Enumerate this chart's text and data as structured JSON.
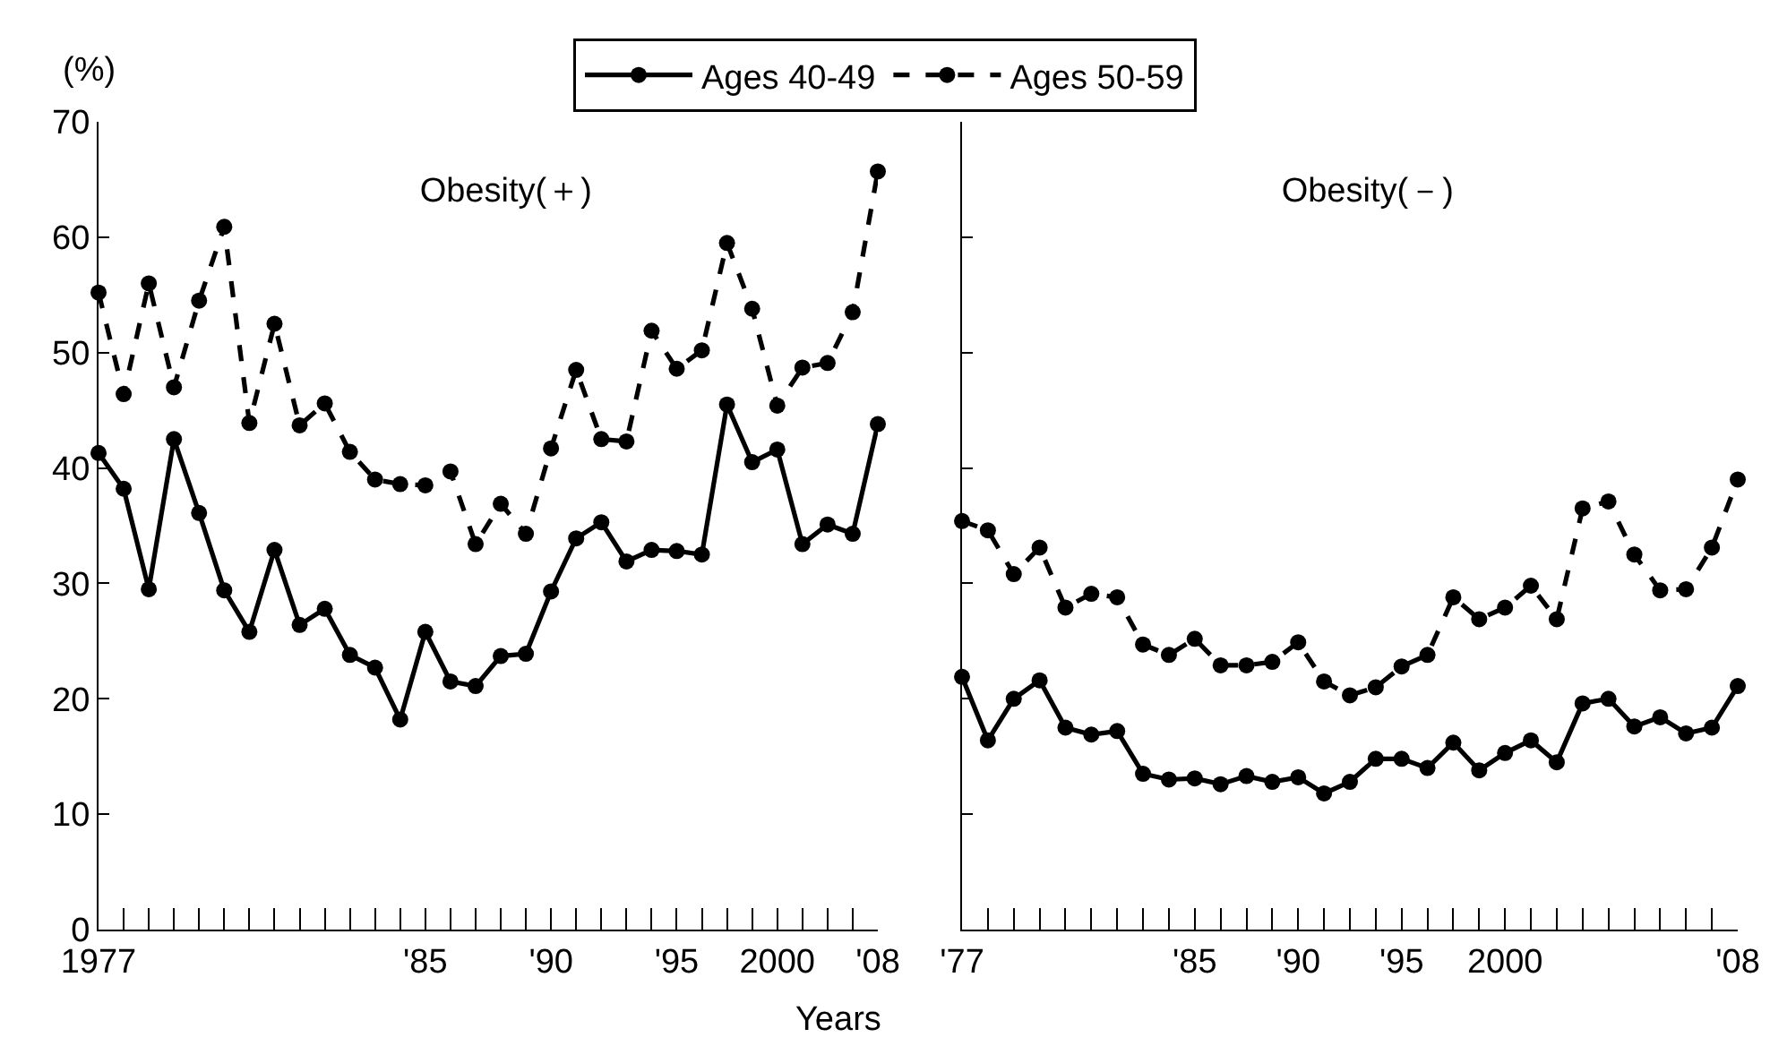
{
  "chart_data": [
    {
      "type": "line",
      "title": "Obesity(＋)",
      "ylabel": "(%)",
      "xlabel": "Years",
      "legend": "top",
      "marker": "circle",
      "categories": [
        "1977",
        null,
        null,
        null,
        null,
        null,
        null,
        null,
        null,
        null,
        null,
        null,
        null,
        "'85",
        null,
        null,
        null,
        null,
        "'90",
        null,
        null,
        null,
        null,
        "'95",
        null,
        null,
        null,
        "2000",
        null,
        null,
        null,
        "'08"
      ],
      "ylim": [
        0,
        70
      ],
      "yticks": [
        0,
        10,
        20,
        30,
        40,
        50,
        60,
        70
      ],
      "series": [
        {
          "name": "Ages 40-49",
          "color": "#000000",
          "line_style": "solid",
          "values": [
            41.3,
            38.2,
            29.5,
            42.5,
            36.1,
            29.4,
            25.8,
            32.9,
            26.4,
            27.8,
            23.8,
            22.7,
            18.2,
            25.8,
            21.5,
            21.1,
            23.7,
            23.9,
            29.3,
            33.9,
            35.3,
            31.9,
            32.9,
            32.8,
            32.5,
            45.5,
            40.5,
            41.6,
            33.4,
            35.1,
            34.3,
            43.8
          ]
        },
        {
          "name": "Ages 50-59",
          "color": "#000000",
          "line_style": "dashed",
          "values": [
            55.2,
            46.4,
            56.0,
            47.0,
            54.5,
            60.9,
            43.9,
            52.5,
            43.7,
            45.6,
            41.4,
            39.0,
            38.6,
            38.5,
            39.7,
            33.4,
            36.9,
            34.3,
            41.7,
            48.5,
            42.5,
            42.3,
            51.9,
            48.6,
            50.2,
            59.5,
            53.8,
            45.4,
            48.7,
            49.1,
            53.5,
            65.7
          ]
        }
      ]
    },
    {
      "type": "line",
      "title": "Obesity(－)",
      "marker": "circle",
      "tick_labels": "x",
      "categories": [
        "'77",
        null,
        null,
        null,
        null,
        null,
        null,
        null,
        null,
        "'85",
        null,
        null,
        null,
        "'90",
        null,
        null,
        null,
        "'95",
        null,
        null,
        null,
        "2000",
        null,
        null,
        null,
        null,
        null,
        null,
        null,
        null,
        "'08"
      ],
      "ylim": [
        0,
        70
      ],
      "yticks": [
        0,
        10,
        20,
        30,
        40,
        50,
        60,
        70
      ],
      "series": [
        {
          "color": "#000000",
          "line_style": "solid",
          "values": [
            21.9,
            16.4,
            20.0,
            21.6,
            17.5,
            16.9,
            17.2,
            13.5,
            13.0,
            13.1,
            12.6,
            13.3,
            12.8,
            13.2,
            11.8,
            12.8,
            14.8,
            14.8,
            14.0,
            16.2,
            13.8,
            15.3,
            16.4,
            14.5,
            19.6,
            20.0,
            17.6,
            18.4,
            17.0,
            17.5,
            21.1
          ]
        },
        {
          "color": "#000000",
          "line_style": "dashed",
          "values": [
            35.4,
            34.6,
            30.8,
            33.1,
            27.9,
            29.1,
            28.8,
            24.7,
            23.8,
            25.2,
            22.9,
            22.9,
            23.2,
            24.9,
            21.5,
            20.3,
            21.0,
            22.8,
            23.8,
            28.8,
            26.9,
            27.9,
            29.8,
            26.9,
            36.5,
            37.1,
            32.5,
            29.4,
            29.5,
            33.1,
            39.0
          ]
        }
      ]
    }
  ]
}
